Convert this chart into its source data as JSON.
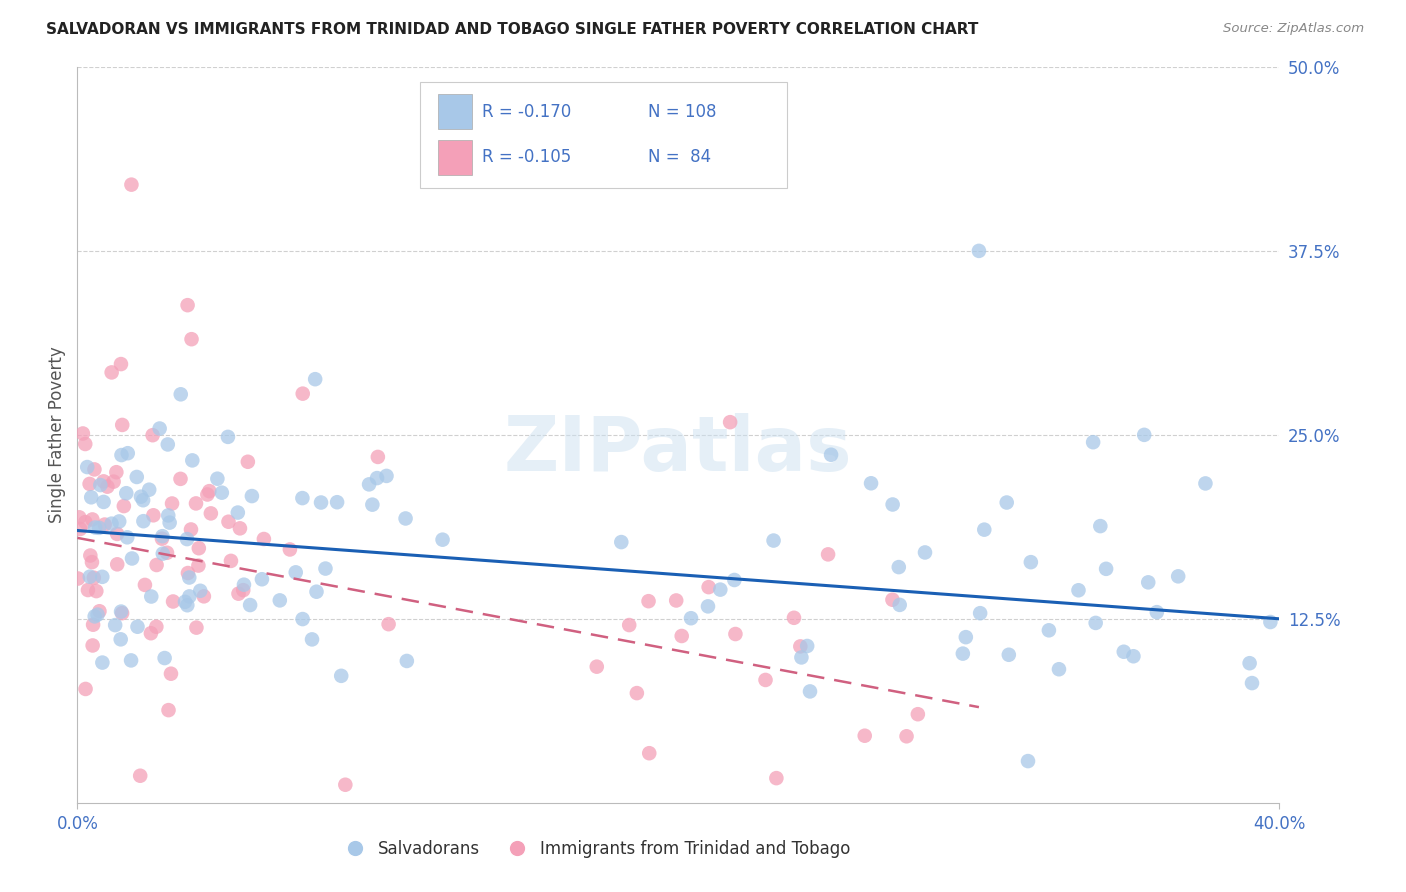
{
  "title": "SALVADORAN VS IMMIGRANTS FROM TRINIDAD AND TOBAGO SINGLE FATHER POVERTY CORRELATION CHART",
  "source": "Source: ZipAtlas.com",
  "ylabel": "Single Father Poverty",
  "x_min": 0.0,
  "x_max": 0.4,
  "y_min": 0.0,
  "y_max": 0.5,
  "y_ticks": [
    0.125,
    0.25,
    0.375,
    0.5
  ],
  "y_tick_labels": [
    "12.5%",
    "25.0%",
    "37.5%",
    "50.0%"
  ],
  "blue_color": "#a8c8e8",
  "pink_color": "#f4a0b8",
  "blue_line_color": "#1a5fb4",
  "pink_line_color": "#d06080",
  "blue_trend_x": [
    0.0,
    0.4
  ],
  "blue_trend_y": [
    0.185,
    0.125
  ],
  "pink_trend_x": [
    0.0,
    0.3
  ],
  "pink_trend_y": [
    0.18,
    0.065
  ],
  "watermark": "ZIPatlas",
  "background_color": "#ffffff",
  "grid_color": "#d0d0d0",
  "title_color": "#222222",
  "axis_label_color": "#4472c4",
  "right_yaxis_color": "#4472c4",
  "legend_text_color": "#4472c4",
  "legend_label_color": "#333333"
}
